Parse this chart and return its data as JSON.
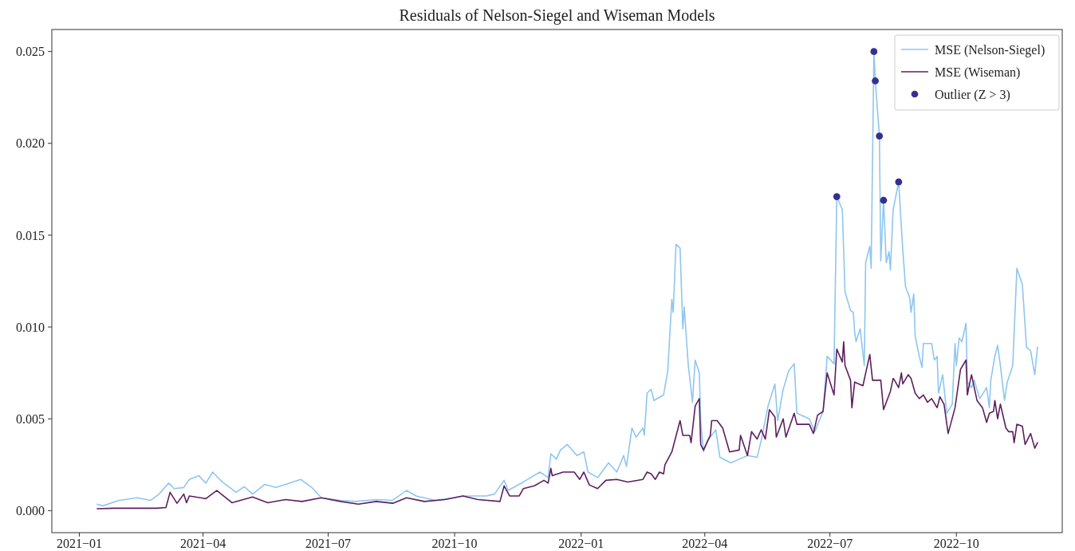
{
  "chart_data": {
    "type": "line",
    "title": "Residuals of Nelson-Siegel and Wiseman Models",
    "xlim": [
      "2020-12-12",
      "2022-12-17"
    ],
    "ylim": [
      -0.0012,
      0.0262
    ],
    "xticks": [
      {
        "value": "2021-01",
        "label": "2021−01"
      },
      {
        "value": "2021-04",
        "label": "2021−04"
      },
      {
        "value": "2021-07",
        "label": "2021−07"
      },
      {
        "value": "2021-10",
        "label": "2021−10"
      },
      {
        "value": "2022-01",
        "label": "2022−01"
      },
      {
        "value": "2022-04",
        "label": "2022−04"
      },
      {
        "value": "2022-07",
        "label": "2022−07"
      },
      {
        "value": "2022-10",
        "label": "2022−10"
      }
    ],
    "yticks": [
      {
        "value": 0,
        "label": "0.000"
      },
      {
        "value": 0.005,
        "label": "0.005"
      },
      {
        "value": 0.01,
        "label": "0.010"
      },
      {
        "value": 0.015,
        "label": "0.015"
      },
      {
        "value": 0.02,
        "label": "0.020"
      },
      {
        "value": 0.025,
        "label": "0.025"
      }
    ],
    "grid": false,
    "legend": "top right",
    "series": [
      {
        "name": "MSE (Nelson-Siegel)",
        "color": "#8ec6f0",
        "x": [
          "2021-01-14",
          "2021-01-18",
          "2021-01-30",
          "2021-02-12",
          "2021-02-22",
          "2021-02-28",
          "2021-03-07",
          "2021-03-11",
          "2021-03-18",
          "2021-03-22",
          "2021-03-29",
          "2021-04-03",
          "2021-04-08",
          "2021-04-15",
          "2021-04-25",
          "2021-05-01",
          "2021-05-07",
          "2021-05-16",
          "2021-05-24",
          "2021-05-31",
          "2021-06-11",
          "2021-06-20",
          "2021-06-26",
          "2021-07-10",
          "2021-07-21",
          "2021-08-05",
          "2021-08-17",
          "2021-08-27",
          "2021-09-03",
          "2021-09-17",
          "2021-09-30",
          "2021-10-07",
          "2021-10-24",
          "2021-10-30",
          "2021-11-06",
          "2021-11-09",
          "2021-11-20",
          "2021-12-02",
          "2021-12-08",
          "2021-12-10",
          "2021-12-14",
          "2021-12-17",
          "2021-12-22",
          "2021-12-29",
          "2022-01-03",
          "2022-01-06",
          "2022-01-13",
          "2022-01-21",
          "2022-01-27",
          "2022-02-01",
          "2022-02-03",
          "2022-02-07",
          "2022-02-10",
          "2022-02-15",
          "2022-02-16",
          "2022-02-18",
          "2022-02-21",
          "2022-02-23",
          "2022-03-02",
          "2022-03-05",
          "2022-03-08",
          "2022-03-09",
          "2022-03-11",
          "2022-03-14",
          "2022-03-16",
          "2022-03-17",
          "2022-03-20",
          "2022-03-23",
          "2022-03-25",
          "2022-03-28",
          "2022-03-29",
          "2022-03-31",
          "2022-04-03",
          "2022-04-09",
          "2022-04-12",
          "2022-04-20",
          "2022-04-26",
          "2022-05-02",
          "2022-05-09",
          "2022-05-12",
          "2022-05-17",
          "2022-05-22",
          "2022-05-24",
          "2022-05-28",
          "2022-06-01",
          "2022-06-05",
          "2022-06-07",
          "2022-06-16",
          "2022-06-20",
          "2022-06-26",
          "2022-06-29",
          "2022-07-04",
          "2022-07-06",
          "2022-07-10",
          "2022-07-12",
          "2022-07-16",
          "2022-07-18",
          "2022-07-19",
          "2022-07-20",
          "2022-07-23",
          "2022-07-26",
          "2022-07-27",
          "2022-07-30",
          "2022-07-31",
          "2022-08-02",
          "2022-08-03",
          "2022-08-06",
          "2022-08-07",
          "2022-08-09",
          "2022-08-11",
          "2022-08-13",
          "2022-08-14",
          "2022-08-16",
          "2022-08-20",
          "2022-08-23",
          "2022-08-25",
          "2022-08-28",
          "2022-08-29",
          "2022-08-31",
          "2022-09-01",
          "2022-09-04",
          "2022-09-06",
          "2022-09-07",
          "2022-09-13",
          "2022-09-15",
          "2022-09-17",
          "2022-09-18",
          "2022-09-21",
          "2022-09-24",
          "2022-09-28",
          "2022-09-30",
          "2022-10-01",
          "2022-10-03",
          "2022-10-05",
          "2022-10-08",
          "2022-10-09",
          "2022-10-12",
          "2022-10-14",
          "2022-10-18",
          "2022-10-23",
          "2022-10-25",
          "2022-10-26",
          "2022-10-29",
          "2022-10-31",
          "2022-11-02",
          "2022-11-05",
          "2022-11-07",
          "2022-11-11",
          "2022-11-14",
          "2022-11-18",
          "2022-11-21",
          "2022-11-24",
          "2022-11-27",
          "2022-11-29"
        ],
        "values": [
          0.00035,
          0.00026,
          0.00056,
          0.0007,
          0.00056,
          0.0009,
          0.0015,
          0.0012,
          0.00126,
          0.0017,
          0.0019,
          0.0015,
          0.0021,
          0.00156,
          0.001,
          0.0013,
          0.0009,
          0.00143,
          0.00126,
          0.00143,
          0.0017,
          0.0012,
          0.0007,
          0.00056,
          0.0005,
          0.0006,
          0.00056,
          0.0011,
          0.0008,
          0.00056,
          0.0007,
          0.0008,
          0.0008,
          0.0009,
          0.00165,
          0.0011,
          0.00156,
          0.0021,
          0.0018,
          0.0031,
          0.0028,
          0.0033,
          0.0036,
          0.003,
          0.0032,
          0.0021,
          0.0018,
          0.0026,
          0.0021,
          0.003,
          0.0024,
          0.0045,
          0.004,
          0.0045,
          0.0041,
          0.0064,
          0.0066,
          0.006,
          0.0063,
          0.0076,
          0.0115,
          0.0108,
          0.0145,
          0.0143,
          0.0099,
          0.0111,
          0.0079,
          0.0059,
          0.0082,
          0.0075,
          0.0049,
          0.0032,
          0.0038,
          0.0044,
          0.0029,
          0.0026,
          0.0028,
          0.003,
          0.0029,
          0.0038,
          0.0057,
          0.0069,
          0.0049,
          0.0066,
          0.0076,
          0.008,
          0.0053,
          0.005,
          0.0043,
          0.0054,
          0.0084,
          0.008,
          0.0171,
          0.0164,
          0.0119,
          0.0109,
          0.0108,
          0.0097,
          0.0092,
          0.0099,
          0.0079,
          0.0135,
          0.0144,
          0.0132,
          0.025,
          0.0234,
          0.0204,
          0.0136,
          0.0169,
          0.0135,
          0.0141,
          0.0131,
          0.0164,
          0.0179,
          0.0142,
          0.0122,
          0.0116,
          0.0108,
          0.0118,
          0.0095,
          0.0084,
          0.0078,
          0.0091,
          0.0091,
          0.0082,
          0.0084,
          0.0064,
          0.0074,
          0.0053,
          0.0058,
          0.0091,
          0.0079,
          0.0094,
          0.0092,
          0.0102,
          0.007,
          0.0067,
          0.0071,
          0.0061,
          0.0067,
          0.0056,
          0.0071,
          0.0084,
          0.009,
          0.0079,
          0.006,
          0.007,
          0.0079,
          0.0132,
          0.0123,
          0.0089,
          0.0087,
          0.0074,
          0.0089
        ]
      },
      {
        "name": "MSE (Wiseman)",
        "color": "#5c1f5e",
        "x": [
          "2021-01-14",
          "2021-01-26",
          "2021-02-10",
          "2021-02-26",
          "2021-03-05",
          "2021-03-08",
          "2021-03-13",
          "2021-03-18",
          "2021-03-20",
          "2021-03-22",
          "2021-04-03",
          "2021-04-11",
          "2021-04-22",
          "2021-05-07",
          "2021-05-18",
          "2021-05-31",
          "2021-06-12",
          "2021-06-26",
          "2021-07-10",
          "2021-07-23",
          "2021-08-05",
          "2021-08-17",
          "2021-08-27",
          "2021-09-09",
          "2021-09-24",
          "2021-10-07",
          "2021-10-18",
          "2021-11-03",
          "2021-11-06",
          "2021-11-10",
          "2021-11-17",
          "2021-11-20",
          "2021-11-28",
          "2021-12-05",
          "2021-12-08",
          "2021-12-10",
          "2021-12-11",
          "2021-12-19",
          "2021-12-27",
          "2021-12-31",
          "2022-01-03",
          "2022-01-07",
          "2022-01-13",
          "2022-01-19",
          "2022-01-27",
          "2022-02-04",
          "2022-02-15",
          "2022-02-18",
          "2022-02-21",
          "2022-02-24",
          "2022-02-27",
          "2022-03-02",
          "2022-03-03",
          "2022-03-08",
          "2022-03-14",
          "2022-03-16",
          "2022-03-21",
          "2022-03-22",
          "2022-03-25",
          "2022-03-28",
          "2022-03-29",
          "2022-03-31",
          "2022-04-05",
          "2022-04-06",
          "2022-04-10",
          "2022-04-14",
          "2022-04-19",
          "2022-04-26",
          "2022-04-27",
          "2022-05-02",
          "2022-05-05",
          "2022-05-09",
          "2022-05-12",
          "2022-05-15",
          "2022-05-18",
          "2022-05-22",
          "2022-05-23",
          "2022-05-28",
          "2022-05-30",
          "2022-06-05",
          "2022-06-07",
          "2022-06-16",
          "2022-06-19",
          "2022-06-22",
          "2022-06-26",
          "2022-06-29",
          "2022-07-04",
          "2022-07-06",
          "2022-07-10",
          "2022-07-11",
          "2022-07-12",
          "2022-07-16",
          "2022-07-17",
          "2022-07-19",
          "2022-07-25",
          "2022-07-30",
          "2022-08-01",
          "2022-08-02",
          "2022-08-07",
          "2022-08-09",
          "2022-08-14",
          "2022-08-16",
          "2022-08-17",
          "2022-08-20",
          "2022-08-22",
          "2022-08-23",
          "2022-08-27",
          "2022-08-29",
          "2022-09-01",
          "2022-09-04",
          "2022-09-07",
          "2022-09-10",
          "2022-09-13",
          "2022-09-17",
          "2022-09-19",
          "2022-09-22",
          "2022-09-25",
          "2022-09-30",
          "2022-10-04",
          "2022-10-08",
          "2022-10-09",
          "2022-10-10",
          "2022-10-12",
          "2022-10-16",
          "2022-10-20",
          "2022-10-23",
          "2022-10-25",
          "2022-10-28",
          "2022-10-29",
          "2022-10-31",
          "2022-11-02",
          "2022-11-06",
          "2022-11-08",
          "2022-11-11",
          "2022-11-12",
          "2022-11-14",
          "2022-11-18",
          "2022-11-20",
          "2022-11-24",
          "2022-11-27",
          "2022-11-29"
        ],
        "values": [
          0.0001,
          0.00013,
          0.00013,
          0.00013,
          0.00017,
          0.001,
          0.0004,
          0.0009,
          0.00043,
          0.0008,
          0.00065,
          0.0011,
          0.00043,
          0.00074,
          0.00043,
          0.0006,
          0.0005,
          0.0007,
          0.0005,
          0.00035,
          0.0005,
          0.0004,
          0.0007,
          0.0005,
          0.0006,
          0.0008,
          0.0006,
          0.0005,
          0.00135,
          0.0008,
          0.0008,
          0.0012,
          0.00135,
          0.00165,
          0.0015,
          0.0023,
          0.0019,
          0.0021,
          0.0021,
          0.0017,
          0.0021,
          0.0014,
          0.0012,
          0.00165,
          0.0017,
          0.00156,
          0.0017,
          0.0021,
          0.002,
          0.0017,
          0.0021,
          0.002,
          0.0025,
          0.0032,
          0.0049,
          0.0041,
          0.0041,
          0.0037,
          0.0057,
          0.0061,
          0.0036,
          0.0033,
          0.0041,
          0.0049,
          0.0049,
          0.0045,
          0.0032,
          0.0033,
          0.0041,
          0.003,
          0.0043,
          0.0039,
          0.0044,
          0.0039,
          0.0055,
          0.0051,
          0.004,
          0.005,
          0.004,
          0.0053,
          0.0047,
          0.0047,
          0.0042,
          0.0052,
          0.0054,
          0.0075,
          0.0063,
          0.0088,
          0.0081,
          0.0092,
          0.0079,
          0.0071,
          0.0056,
          0.007,
          0.0068,
          0.0085,
          0.0071,
          0.0071,
          0.0071,
          0.0055,
          0.0065,
          0.0072,
          0.0071,
          0.0067,
          0.0075,
          0.0069,
          0.0074,
          0.0072,
          0.0064,
          0.0061,
          0.0063,
          0.0059,
          0.0061,
          0.0056,
          0.0062,
          0.0058,
          0.0042,
          0.0056,
          0.0077,
          0.0082,
          0.0063,
          0.0067,
          0.0074,
          0.006,
          0.0056,
          0.0048,
          0.0053,
          0.0054,
          0.006,
          0.005,
          0.0058,
          0.0045,
          0.0043,
          0.0043,
          0.0037,
          0.0047,
          0.0046,
          0.0036,
          0.0042,
          0.0034,
          0.0037
        ]
      },
      {
        "name": "Outlier (Z > 3)",
        "type": "scatter",
        "marker": "circle",
        "color": "#35308f",
        "x": [
          "2022-07-06",
          "2022-08-02",
          "2022-08-03",
          "2022-08-06",
          "2022-08-09",
          "2022-08-20"
        ],
        "values": [
          0.0171,
          0.025,
          0.0234,
          0.0204,
          0.0169,
          0.0179
        ]
      }
    ]
  }
}
